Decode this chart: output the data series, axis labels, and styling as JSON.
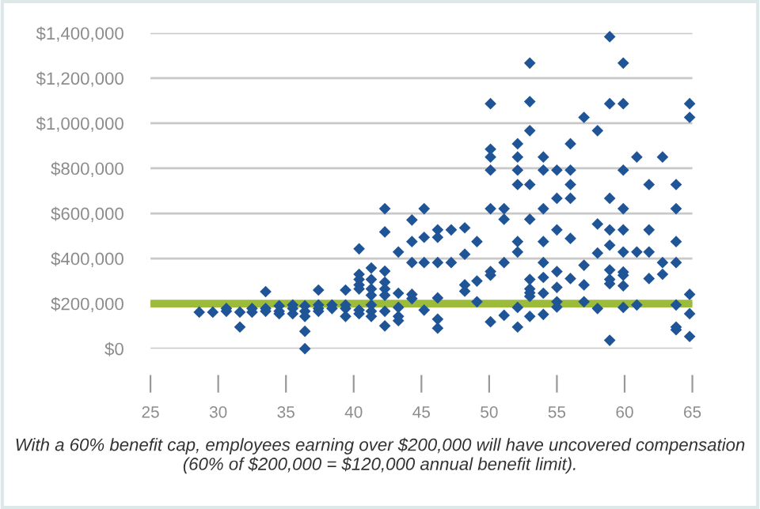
{
  "chart_data": {
    "type": "scatter",
    "marker": "diamond",
    "grid": "y",
    "xlim": [
      25,
      65
    ],
    "xticks": [
      25,
      30,
      35,
      40,
      45,
      50,
      55,
      60,
      65
    ],
    "ylim": [
      0,
      1400000
    ],
    "yticks": [
      {
        "value": 0,
        "label": "$0"
      },
      {
        "value": 200000,
        "label": "$200,000"
      },
      {
        "value": 400000,
        "label": "$400,000"
      },
      {
        "value": 600000,
        "label": "$600,000"
      },
      {
        "value": 800000,
        "label": "$800,000"
      },
      {
        "value": 1000000,
        "label": "$1,000,000"
      },
      {
        "value": 1200000,
        "label": "$1,200,000"
      },
      {
        "value": 1400000,
        "label": "$1,400,000"
      }
    ],
    "ref_lines": [
      {
        "axis": "y",
        "value": 200000,
        "label": null,
        "color": "#9dbb3b"
      }
    ],
    "annotations": [
      "With a 60% benefit cap, employees earning over $200,000 will have uncovered compensation (60% of $200,000 = $120,000 annual benefit limit)."
    ],
    "series": [
      {
        "color": "#1f5597",
        "x": [
          28.6,
          29.6,
          30.6,
          30.6,
          31.6,
          31.6,
          32.5,
          32.5,
          33.5,
          33.5,
          33.5,
          34.5,
          34.5,
          34.5,
          35.5,
          35.5,
          35.5,
          36.4,
          36.4,
          36.4,
          36.4,
          36.4,
          37.4,
          37.4,
          37.4,
          37.4,
          38.4,
          38.4,
          39.4,
          39.4,
          39.4,
          39.4,
          40.4,
          40.4,
          40.4,
          40.4,
          40.4,
          40.4,
          40.4,
          41.3,
          41.3,
          41.3,
          41.3,
          41.3,
          41.3,
          41.3,
          42.3,
          42.3,
          42.3,
          42.3,
          42.3,
          42.3,
          42.3,
          42.3,
          43.3,
          43.3,
          43.3,
          43.3,
          43.3,
          44.3,
          44.3,
          44.3,
          44.3,
          44.3,
          45.2,
          45.2,
          45.2,
          45.2,
          46.2,
          46.2,
          46.2,
          46.2,
          46.2,
          46.2,
          47.2,
          47.2,
          48.2,
          48.2,
          48.2,
          48.2,
          49.1,
          49.1,
          49.1,
          50.1,
          50.1,
          50.1,
          50.1,
          50.1,
          50.1,
          50.1,
          50.1,
          51.1,
          51.1,
          51.1,
          51.1,
          52.1,
          52.1,
          52.1,
          52.1,
          52.1,
          52.1,
          52.1,
          52.1,
          53,
          53,
          53,
          53,
          53,
          53,
          53,
          53,
          53,
          53,
          54,
          54,
          54,
          54,
          54,
          54,
          54,
          54,
          55,
          55,
          55,
          55,
          55,
          55,
          55,
          56,
          56,
          56,
          56,
          56,
          56,
          57,
          57,
          57,
          57,
          58,
          58,
          58,
          58,
          58.9,
          58.9,
          58.9,
          58.9,
          58.9,
          58.9,
          58.9,
          58.9,
          58.9,
          59.9,
          59.9,
          59.9,
          59.9,
          59.9,
          59.9,
          59.9,
          59.9,
          59.9,
          59.9,
          60.9,
          60.9,
          60.9,
          61.8,
          61.8,
          61.8,
          61.8,
          62.8,
          62.8,
          62.8,
          63.8,
          63.8,
          63.8,
          63.8,
          63.8,
          63.8,
          63.8,
          64.8,
          64.8,
          64.8,
          64.8,
          64.8
        ],
        "values": [
          162000,
          162000,
          166000,
          178000,
          162000,
          96000,
          162000,
          178000,
          253000,
          166000,
          178000,
          190000,
          166000,
          155000,
          194000,
          178000,
          155000,
          190000,
          166000,
          143000,
          77000,
          0,
          260000,
          194000,
          178000,
          166000,
          194000,
          178000,
          260000,
          194000,
          178000,
          143000,
          443000,
          330000,
          307000,
          283000,
          265000,
          171000,
          155000,
          358000,
          307000,
          265000,
          237000,
          194000,
          166000,
          143000,
          621000,
          518000,
          344000,
          295000,
          265000,
          237000,
          166000,
          101000,
          429000,
          246000,
          183000,
          143000,
          124000,
          571000,
          475000,
          382000,
          241000,
          222000,
          621000,
          494000,
          382000,
          171000,
          527000,
          494000,
          382000,
          225000,
          131000,
          91000,
          527000,
          382000,
          536000,
          419000,
          283000,
          255000,
          475000,
          300000,
          208000,
          1087000,
          885000,
          850000,
          792000,
          621000,
          342000,
          326000,
          119000,
          621000,
          574000,
          382000,
          148000,
          909000,
          850000,
          792000,
          728000,
          475000,
          429000,
          183000,
          96000,
          1267000,
          1096000,
          967000,
          728000,
          574000,
          307000,
          265000,
          248000,
          232000,
          143000,
          850000,
          792000,
          621000,
          475000,
          382000,
          316000,
          246000,
          152000,
          792000,
          667000,
          527000,
          342000,
          272000,
          208000,
          185000,
          909000,
          792000,
          728000,
          667000,
          489000,
          311000,
          1026000,
          370000,
          283000,
          208000,
          967000,
          553000,
          424000,
          178000,
          1384000,
          1087000,
          667000,
          527000,
          459000,
          349000,
          307000,
          288000,
          37000,
          1267000,
          1087000,
          792000,
          621000,
          527000,
          429000,
          340000,
          326000,
          279000,
          183000,
          850000,
          429000,
          194000,
          728000,
          527000,
          429000,
          311000,
          850000,
          382000,
          330000,
          728000,
          621000,
          475000,
          382000,
          194000,
          96000,
          84000,
          1087000,
          1026000,
          241000,
          155000,
          54000
        ]
      }
    ]
  }
}
